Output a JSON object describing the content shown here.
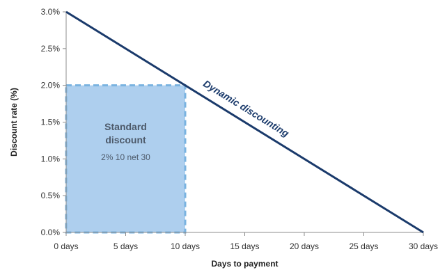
{
  "chart_data": {
    "type": "line",
    "xlabel": "Days to payment",
    "ylabel": "Discount rate (%)",
    "xlim": [
      0,
      30
    ],
    "ylim": [
      0,
      3.0
    ],
    "x_ticks": [
      0,
      5,
      10,
      15,
      20,
      25,
      30
    ],
    "x_tick_labels": [
      "0 days",
      "5 days",
      "10 days",
      "15 days",
      "20 days",
      "25 days",
      "30 days"
    ],
    "y_ticks": [
      0,
      0.5,
      1.0,
      1.5,
      2.0,
      2.5,
      3.0
    ],
    "y_tick_labels": [
      "0.0%",
      "0.5%",
      "1.0%",
      "1.5%",
      "2.0%",
      "2.5%",
      "3.0%"
    ],
    "grid": false,
    "series": [
      {
        "name": "Dynamic discounting",
        "x": [
          0,
          30
        ],
        "y": [
          3.0,
          0.0
        ],
        "color": "#1a3a6b"
      }
    ],
    "regions": [
      {
        "name": "Standard discount",
        "subtitle": "2% 10 net 30",
        "x_range": [
          0,
          10
        ],
        "y_range": [
          0,
          2.0
        ],
        "fill": "#aecfee",
        "border": "#7ab3e0"
      }
    ]
  }
}
